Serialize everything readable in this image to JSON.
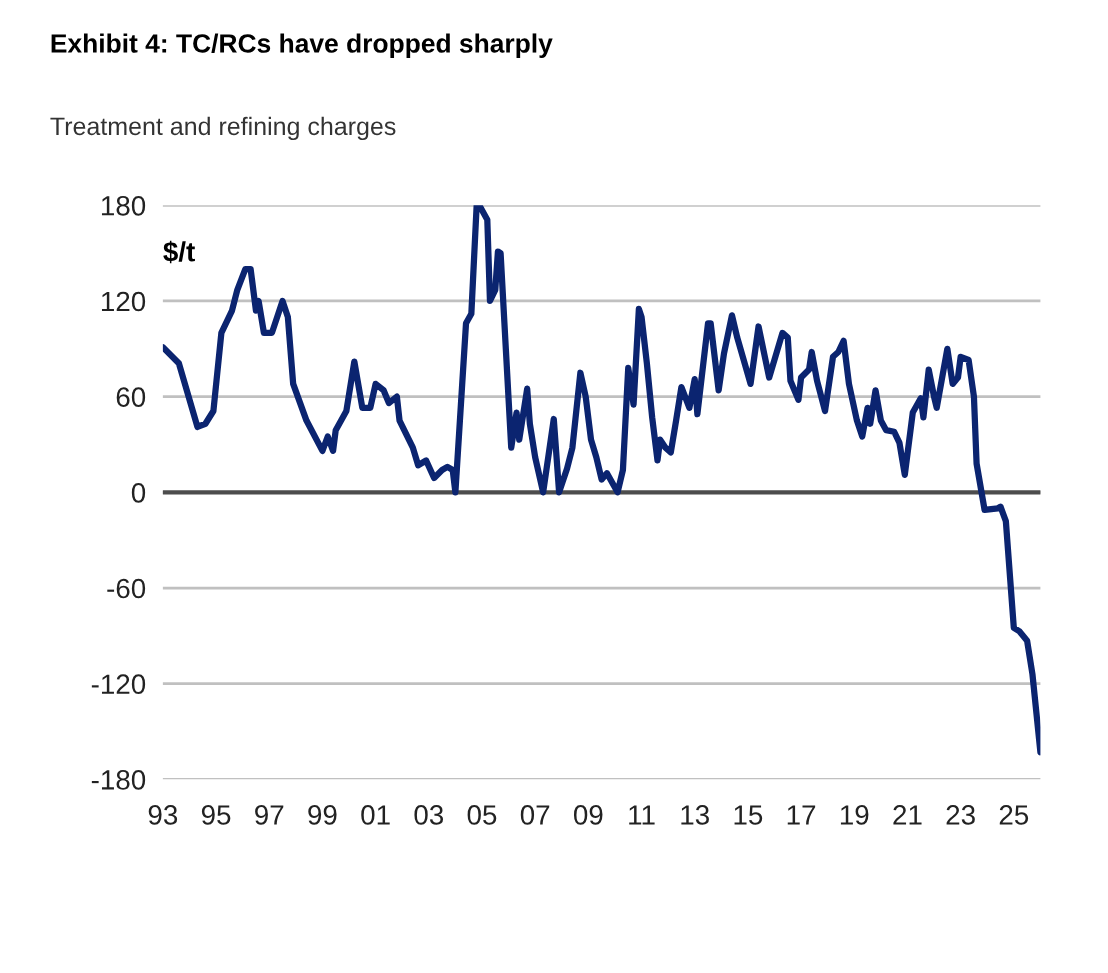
{
  "chart_data": {
    "type": "line",
    "title": "Exhibit 4: TC/RCs have dropped sharply",
    "subtitle": "Treatment and refining charges",
    "ylabel": "$/t",
    "x": [
      1993.0,
      1993.6,
      1994.3,
      1994.6,
      1994.9,
      1995.2,
      1995.6,
      1995.8,
      1996.1,
      1996.3,
      1996.5,
      1996.6,
      1996.8,
      1997.1,
      1997.5,
      1997.7,
      1997.9,
      1998.4,
      1999.0,
      1999.2,
      1999.4,
      1999.5,
      1999.9,
      2000.2,
      2000.5,
      2000.8,
      2001.0,
      2001.3,
      2001.5,
      2001.8,
      2001.9,
      2002.4,
      2002.6,
      2002.9,
      2003.2,
      2003.5,
      2003.7,
      2003.9,
      2004.0,
      2004.4,
      2004.6,
      2004.8,
      2004.9,
      2005.2,
      2005.3,
      2005.5,
      2005.6,
      2005.7,
      2006.1,
      2006.3,
      2006.4,
      2006.7,
      2006.8,
      2007.0,
      2007.3,
      2007.7,
      2007.9,
      2008.2,
      2008.4,
      2008.7,
      2008.9,
      2009.1,
      2009.3,
      2009.5,
      2009.7,
      2009.9,
      2010.1,
      2010.3,
      2010.5,
      2010.7,
      2010.9,
      2011.0,
      2011.2,
      2011.4,
      2011.6,
      2011.7,
      2011.9,
      2012.1,
      2012.3,
      2012.5,
      2012.8,
      2013.0,
      2013.1,
      2013.5,
      2013.6,
      2013.9,
      2014.1,
      2014.4,
      2014.6,
      2015.1,
      2015.4,
      2015.8,
      2016.3,
      2016.5,
      2016.6,
      2016.9,
      2017.0,
      2017.3,
      2017.4,
      2017.6,
      2017.9,
      2018.2,
      2018.4,
      2018.6,
      2018.8,
      2019.1,
      2019.3,
      2019.5,
      2019.6,
      2019.8,
      2020.0,
      2020.2,
      2020.5,
      2020.7,
      2020.9,
      2021.2,
      2021.5,
      2021.6,
      2021.8,
      2022.0,
      2022.1,
      2022.5,
      2022.7,
      2022.9,
      2023.0,
      2023.3,
      2023.5,
      2023.6,
      2023.9,
      2024.4,
      2024.5,
      2024.7,
      2025.0,
      2025.2,
      2025.5,
      2025.7,
      2026.0
    ],
    "series": [
      {
        "color": "#0b2470",
        "values": [
          91,
          81,
          41,
          43,
          51,
          100,
          114,
          127,
          140,
          140,
          114,
          120,
          100,
          100,
          120,
          110,
          68,
          45,
          26,
          35,
          26,
          39,
          51,
          82,
          53,
          53,
          68,
          64,
          56,
          60,
          45,
          28,
          17,
          20,
          9,
          14,
          16,
          14,
          0,
          106,
          112,
          180,
          180,
          171,
          120,
          127,
          151,
          150,
          28,
          50,
          33,
          65,
          43,
          22,
          0,
          46,
          0,
          15,
          28,
          75,
          60,
          33,
          22,
          8,
          12,
          6,
          0,
          14,
          78,
          55,
          115,
          110,
          81,
          47,
          20,
          33,
          28,
          25,
          45,
          66,
          53,
          71,
          49,
          106,
          106,
          64,
          87,
          111,
          97,
          68,
          104,
          72,
          100,
          97,
          70,
          58,
          72,
          77,
          88,
          70,
          51,
          85,
          88,
          95,
          68,
          45,
          35,
          53,
          43,
          64,
          45,
          39,
          38,
          31,
          11,
          50,
          59,
          47,
          77,
          60,
          53,
          90,
          68,
          72,
          85,
          83,
          60,
          18,
          -11,
          -10,
          -9,
          -18,
          -85,
          -87,
          -93,
          -114,
          -163
        ]
      }
    ],
    "xlim": [
      1993,
      2026
    ],
    "xticks": [
      {
        "value": 1993,
        "label": "93"
      },
      {
        "value": 1995,
        "label": "95"
      },
      {
        "value": 1997,
        "label": "97"
      },
      {
        "value": 1999,
        "label": "99"
      },
      {
        "value": 2001,
        "label": "01"
      },
      {
        "value": 2003,
        "label": "03"
      },
      {
        "value": 2005,
        "label": "05"
      },
      {
        "value": 2007,
        "label": "07"
      },
      {
        "value": 2009,
        "label": "09"
      },
      {
        "value": 2011,
        "label": "11"
      },
      {
        "value": 2013,
        "label": "13"
      },
      {
        "value": 2015,
        "label": "15"
      },
      {
        "value": 2017,
        "label": "17"
      },
      {
        "value": 2019,
        "label": "19"
      },
      {
        "value": 2021,
        "label": "21"
      },
      {
        "value": 2023,
        "label": "23"
      },
      {
        "value": 2025,
        "label": "25"
      }
    ],
    "ylim": [
      -180,
      180
    ],
    "yticks": [
      -180,
      -120,
      -60,
      0,
      60,
      120,
      180
    ],
    "grid": "y",
    "marker": "none",
    "line_style": "solid",
    "ref_lines": [
      {
        "axis": "y",
        "value": 0,
        "color": "#4d4d4d"
      }
    ]
  }
}
